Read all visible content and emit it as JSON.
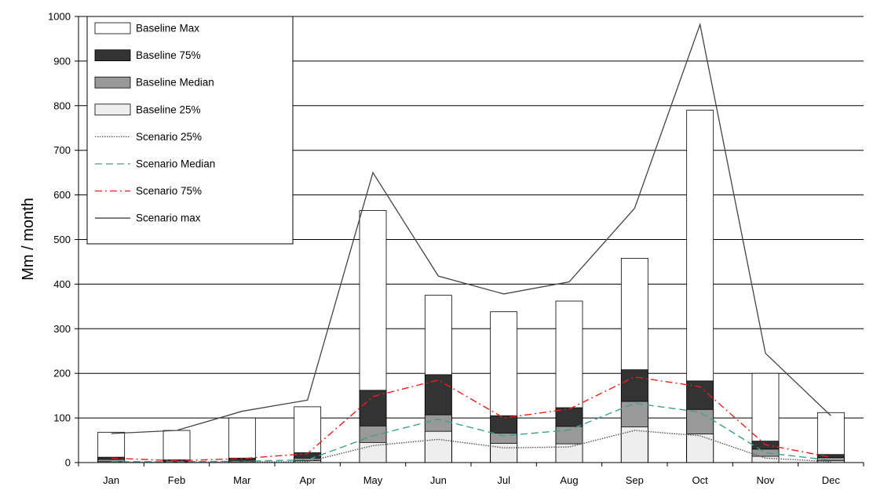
{
  "chart_data": {
    "type": "bar",
    "categories": [
      "Jan",
      "Feb",
      "Mar",
      "Apr",
      "May",
      "Jun",
      "Jul",
      "Aug",
      "Sep",
      "Oct",
      "Nov",
      "Dec"
    ],
    "ylabel": "Mm / month",
    "xlabel": "",
    "ylim": [
      0,
      1000
    ],
    "yticks": [
      0,
      100,
      200,
      300,
      400,
      500,
      600,
      700,
      800,
      900,
      1000
    ],
    "grid": "horizontal",
    "legend_position": "top-left",
    "bar_series": [
      {
        "name": "Baseline Max",
        "color": "#ffffff",
        "values": [
          68,
          72,
          100,
          125,
          565,
          375,
          338,
          362,
          458,
          790,
          200,
          112
        ]
      },
      {
        "name": "Baseline 75%",
        "color": "#333333",
        "values": [
          12,
          6,
          10,
          22,
          162,
          197,
          105,
          123,
          208,
          183,
          48,
          18
        ]
      },
      {
        "name": "Baseline Median",
        "color": "#999999",
        "values": [
          7,
          3,
          5,
          10,
          82,
          107,
          66,
          81,
          137,
          119,
          30,
          11
        ]
      },
      {
        "name": "Baseline 25%",
        "color": "#eeeeee",
        "values": [
          2,
          1,
          2,
          4,
          45,
          70,
          43,
          42,
          80,
          64,
          14,
          4
        ]
      }
    ],
    "line_series": [
      {
        "name": "Scenario 25%",
        "color": "#555555",
        "dash": "dotted",
        "values": [
          1,
          1,
          1,
          2,
          38,
          52,
          33,
          35,
          72,
          60,
          10,
          2
        ]
      },
      {
        "name": "Scenario Median",
        "color": "#3f9e8c",
        "dash": "dashed",
        "values": [
          2,
          2,
          3,
          6,
          60,
          97,
          60,
          73,
          133,
          113,
          22,
          5
        ]
      },
      {
        "name": "Scenario 75%",
        "color": "#e8201e",
        "dash": "dashdot",
        "values": [
          10,
          4,
          9,
          20,
          148,
          185,
          100,
          120,
          192,
          170,
          40,
          12
        ]
      },
      {
        "name": "Scenario max",
        "color": "#444444",
        "dash": "solid",
        "values": [
          65,
          72,
          115,
          140,
          650,
          418,
          378,
          405,
          570,
          982,
          245,
          105
        ]
      }
    ]
  }
}
